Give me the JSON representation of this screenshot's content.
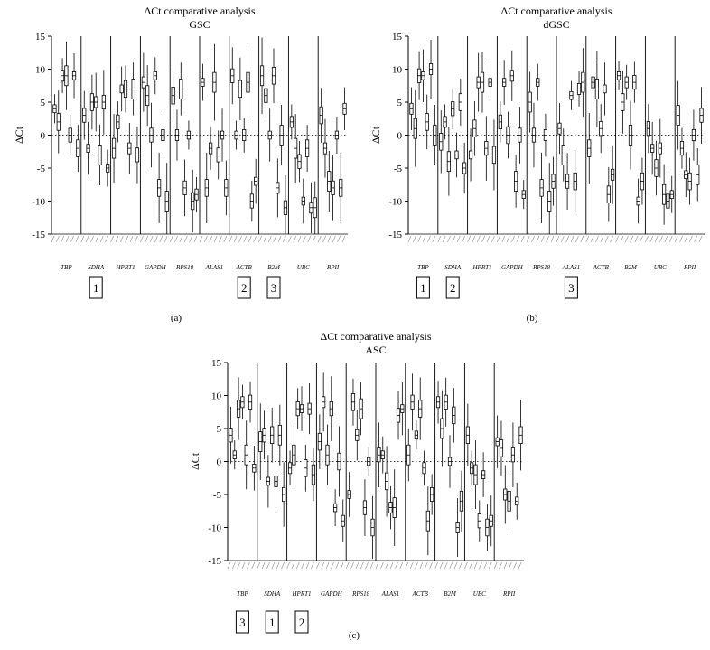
{
  "chart_data": [
    {
      "type": "boxplot",
      "panel_label": "(a)",
      "title": "ΔCt comparative analysis",
      "subtitle": "GSC",
      "ylabel": "ΔCt",
      "ylim": [
        -15,
        15
      ],
      "yticks": [
        15,
        10,
        5,
        0,
        -5,
        -10,
        -15
      ],
      "genes": [
        "TBP",
        "SDHA",
        "HPRT1",
        "GAPDH",
        "RPS18",
        "ALAS1",
        "ACTB",
        "B2M",
        "UBC",
        "RPII"
      ],
      "rank_boxes": [
        {
          "gene": "SDHA",
          "rank": "1"
        },
        {
          "gene": "ACTB",
          "rank": "2"
        },
        {
          "gene": "B2M",
          "rank": "3"
        }
      ],
      "medians": [
        [
          4,
          2,
          9,
          9,
          0,
          9,
          -2
        ],
        [
          3,
          -2,
          5,
          5,
          -3,
          5,
          -5
        ],
        [
          -2,
          2,
          7,
          7,
          -2,
          7,
          -3
        ],
        [
          8,
          6,
          0,
          9,
          -8,
          0,
          -10
        ],
        [
          6,
          0,
          7,
          -8,
          0,
          -10,
          -9
        ],
        [
          8,
          -8,
          -2,
          8,
          -3,
          0,
          -8
        ],
        [
          9,
          0,
          7,
          0,
          8,
          -10,
          -7
        ],
        [
          9,
          6,
          0,
          9,
          -8,
          0,
          -11
        ],
        [
          2,
          -2,
          -4,
          -10,
          -2,
          -11,
          -11
        ],
        [
          3,
          -2,
          -7,
          -8,
          0,
          -8,
          4
        ]
      ]
    },
    {
      "type": "boxplot",
      "panel_label": "(b)",
      "title": "ΔCt comparative analysis",
      "subtitle": "dGSC",
      "ylabel": "ΔCt",
      "ylim": [
        -15,
        15
      ],
      "yticks": [
        15,
        10,
        5,
        0,
        -5,
        -10,
        -15
      ],
      "genes": [
        "TBP",
        "SDHA",
        "HPRT1",
        "GAPDH",
        "RPS18",
        "ALAS1",
        "ACTB",
        "B2M",
        "UBC",
        "RPII"
      ],
      "rank_boxes": [
        {
          "gene": "TBP",
          "rank": "1"
        },
        {
          "gene": "SDHA",
          "rank": "2"
        },
        {
          "gene": "ALAS1",
          "rank": "3"
        }
      ],
      "medians": [
        [
          4,
          1,
          9,
          9,
          2,
          10,
          0
        ],
        [
          -1,
          2,
          -4,
          4,
          -3,
          5,
          -5
        ],
        [
          -3,
          1,
          8,
          8,
          -2,
          8,
          -3
        ],
        [
          2,
          8,
          0,
          9,
          -7,
          0,
          -9
        ],
        [
          5,
          0,
          8,
          -8,
          0,
          -10,
          -7
        ],
        [
          1,
          -3,
          -7,
          6,
          -7,
          7,
          8
        ],
        [
          -2,
          8,
          7,
          1,
          7,
          -9,
          -6
        ],
        [
          9,
          5,
          8,
          0,
          8,
          -10,
          -7
        ],
        [
          1,
          -2,
          -5,
          -2,
          -9,
          -10,
          -9
        ],
        [
          3,
          -2,
          -6,
          -7,
          0,
          -6,
          3
        ]
      ]
    },
    {
      "type": "boxplot",
      "panel_label": "(c)",
      "title": "ΔCt comparative analysis",
      "subtitle": "ASC",
      "ylabel": "ΔCt",
      "ylim": [
        -15,
        15
      ],
      "yticks": [
        15,
        10,
        5,
        0,
        -5,
        -10,
        -15
      ],
      "genes": [
        "TBP",
        "SDHA",
        "HPRT1",
        "GAPDH",
        "RPS18",
        "ALAS1",
        "ACTB",
        "B2M",
        "UBC",
        "RPII"
      ],
      "rank_boxes": [
        {
          "gene": "TBP",
          "rank": "3"
        },
        {
          "gene": "SDHA",
          "rank": "1"
        },
        {
          "gene": "HPRT1",
          "rank": "2"
        }
      ],
      "medians": [
        [
          4,
          1,
          8,
          9,
          1,
          9,
          -1
        ],
        [
          3,
          4,
          -3,
          4,
          -3,
          4,
          -5
        ],
        [
          -1,
          1,
          8,
          8,
          -1,
          8,
          -2
        ],
        [
          3,
          9,
          1,
          8,
          -7,
          0,
          -9
        ],
        [
          -5,
          9,
          4,
          8,
          -7,
          0,
          -10
        ],
        [
          1,
          1,
          -3,
          -7,
          -7,
          7,
          8
        ],
        [
          1,
          9,
          4,
          8,
          -1,
          -9,
          -5
        ],
        [
          9,
          5,
          9,
          0,
          7,
          -10,
          -6
        ],
        [
          4,
          -1,
          -2,
          -9,
          -2,
          -10,
          -9
        ],
        [
          3,
          2,
          -5,
          -6,
          1,
          -6,
          4
        ]
      ]
    }
  ]
}
